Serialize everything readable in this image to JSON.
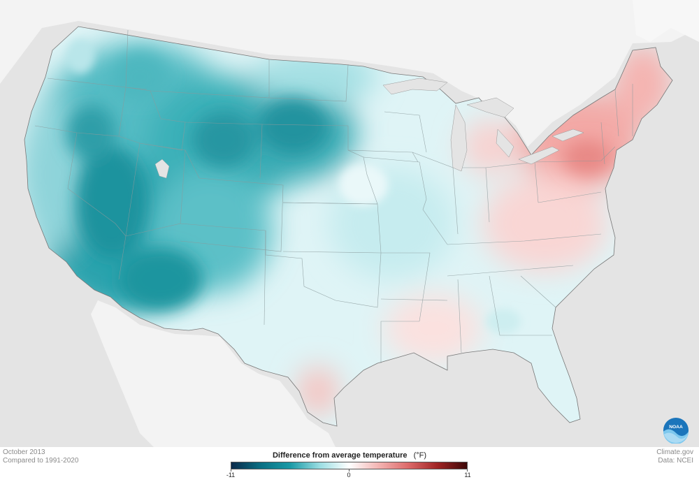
{
  "footer": {
    "left_line1": "October 2013",
    "left_line2": "Compared to 1991-2020",
    "right_line1": "Climate.gov",
    "right_line2": "Data: NCEI"
  },
  "legend": {
    "title": "Difference from average temperature",
    "unit": "(°F)",
    "min_label": "-11",
    "mid_label": "0",
    "max_label": "11",
    "colors": [
      "#0b2a4a",
      "#0a6f83",
      "#1a9aa6",
      "#9adde2",
      "#ffffff",
      "#f3b4b2",
      "#dd6a6a",
      "#a02424",
      "#3d0808"
    ]
  },
  "logo": {
    "text": "NOAA"
  },
  "map_regions": {
    "cold_anomaly": [
      "Pacific Northwest",
      "Great Basin",
      "Rocky Mountains",
      "Northern Plains",
      "Southwest"
    ],
    "warm_anomaly": [
      "Northeast",
      "Mid-Atlantic",
      "Great Lakes (Michigan)",
      "Southeast"
    ]
  }
}
